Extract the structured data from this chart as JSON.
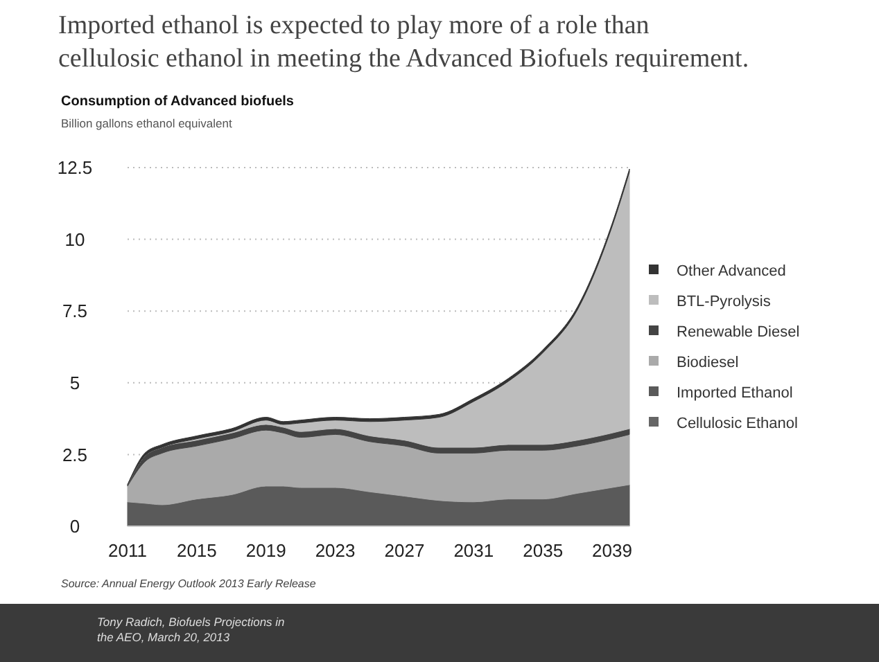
{
  "chart_data": {
    "type": "area",
    "stacked": true,
    "title": "Imported ethanol is expected to play more of a role than cellulosic ethanol in meeting the Advanced Biofuels requirement.",
    "subtitle": "Consumption of Advanced biofuels",
    "ylabel": "Billion gallons ethanol equivalent",
    "x": [
      2011,
      2012,
      2013,
      2015,
      2017,
      2019,
      2020,
      2021,
      2023,
      2025,
      2027,
      2029,
      2031,
      2033,
      2035,
      2037,
      2039,
      2040
    ],
    "xlim": [
      2011,
      2040
    ],
    "xticks": [
      2011,
      2015,
      2019,
      2023,
      2027,
      2031,
      2035,
      2039
    ],
    "ylim": [
      0,
      12.5
    ],
    "yticks": [
      0,
      2.5,
      5,
      7.5,
      10,
      12.5
    ],
    "grid": "y",
    "legend": "right",
    "series": [
      {
        "name": "Cellulosic Ethanol",
        "color": "#666666",
        "values": [
          0.05,
          0.05,
          0.05,
          0.05,
          0.05,
          0.05,
          0.05,
          0.05,
          0.05,
          0.05,
          0.05,
          0.05,
          0.05,
          0.05,
          0.05,
          0.05,
          0.05,
          0.05
        ]
      },
      {
        "name": "Imported Ethanol",
        "color": "#5a5a5a",
        "values": [
          0.8,
          0.75,
          0.7,
          0.9,
          1.05,
          1.35,
          1.35,
          1.3,
          1.3,
          1.15,
          1.0,
          0.85,
          0.8,
          0.9,
          0.9,
          1.1,
          1.3,
          1.4
        ]
      },
      {
        "name": "Biodiesel",
        "color": "#aaaaaa",
        "values": [
          0.55,
          1.45,
          1.8,
          1.85,
          1.95,
          1.95,
          1.85,
          1.75,
          1.85,
          1.75,
          1.75,
          1.65,
          1.7,
          1.7,
          1.7,
          1.65,
          1.7,
          1.75
        ]
      },
      {
        "name": "Renewable Diesel",
        "color": "#444444",
        "values": [
          0.05,
          0.2,
          0.2,
          0.2,
          0.2,
          0.2,
          0.2,
          0.2,
          0.2,
          0.2,
          0.2,
          0.2,
          0.2,
          0.2,
          0.2,
          0.2,
          0.2,
          0.2
        ]
      },
      {
        "name": "BTL-Pyrolysis",
        "color": "#bdbdbd",
        "values": [
          0,
          0,
          0,
          0.05,
          0.05,
          0.15,
          0.1,
          0.3,
          0.3,
          0.5,
          0.7,
          1.05,
          1.6,
          2.2,
          3.2,
          4.55,
          7.2,
          8.95
        ]
      },
      {
        "name": "Other Advanced",
        "color": "#333333",
        "values": [
          0,
          0.1,
          0.1,
          0.1,
          0.1,
          0.1,
          0.1,
          0.1,
          0.1,
          0.1,
          0.1,
          0.1,
          0.1,
          0.1,
          0.1,
          0.1,
          0.1,
          0.1
        ]
      }
    ],
    "annotations": [
      "Source: Annual Energy Outlook 2013 Early Release",
      "Tony Radich, Biofuels Projections in the AEO, March 20, 2013"
    ]
  }
}
